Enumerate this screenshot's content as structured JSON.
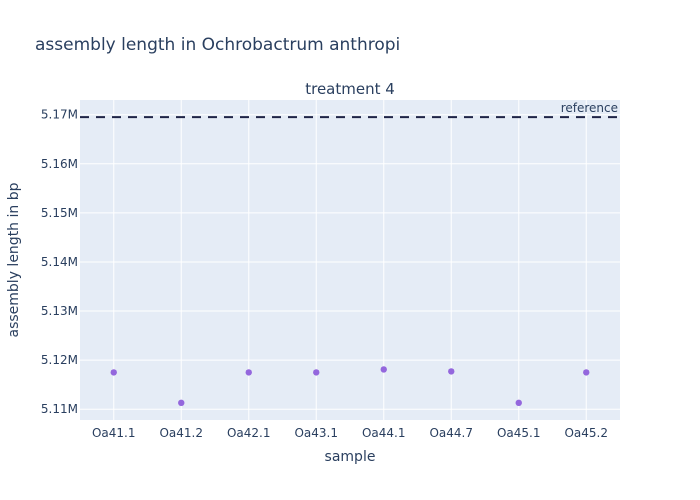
{
  "chart_data": {
    "type": "scatter",
    "title": "assembly length in Ochrobactrum anthropi",
    "subtitle": "treatment 4",
    "xlabel": "sample",
    "ylabel": "assembly length in bp",
    "categories": [
      "Oa41.1",
      "Oa41.2",
      "Oa42.1",
      "Oa43.1",
      "Oa44.1",
      "Oa44.7",
      "Oa45.1",
      "Oa45.2"
    ],
    "values": [
      5117500,
      5111300,
      5117500,
      5117500,
      5118100,
      5117700,
      5111300,
      5117500
    ],
    "ylim": [
      5107800,
      5173000
    ],
    "yticks": [
      5110000,
      5120000,
      5130000,
      5140000,
      5150000,
      5160000,
      5170000
    ],
    "ytick_labels": [
      "5.11M",
      "5.12M",
      "5.13M",
      "5.14M",
      "5.15M",
      "5.16M",
      "5.17M"
    ],
    "reference": {
      "label": "reference",
      "value": 5169500,
      "color": "#1f2447"
    },
    "marker_color": "#9467dd",
    "background": "#e5ecf6",
    "grid": true
  }
}
